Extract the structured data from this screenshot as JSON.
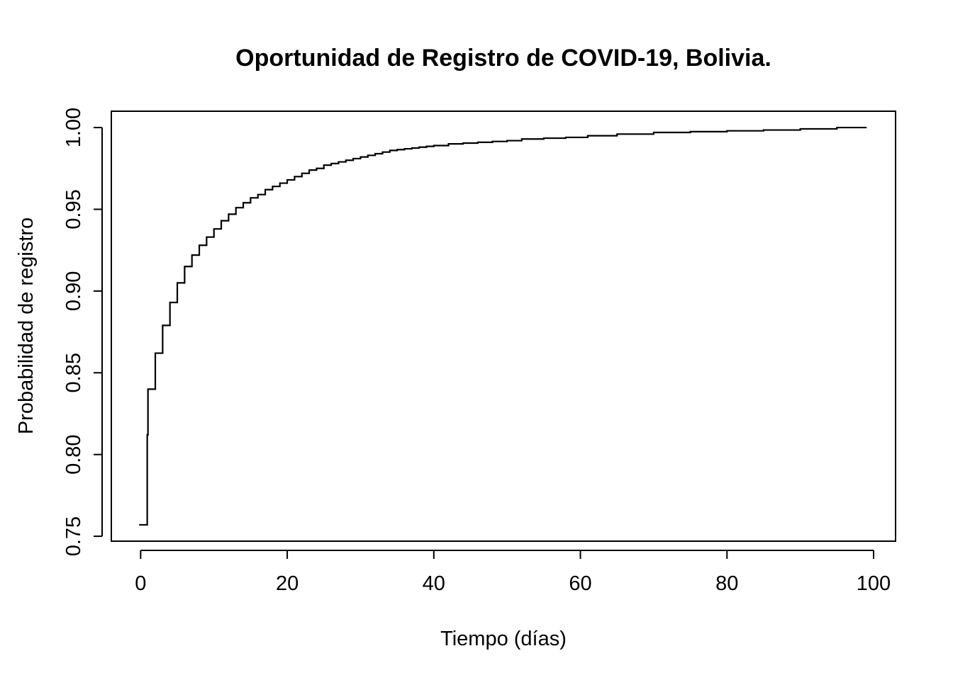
{
  "chart_data": {
    "type": "line",
    "step": true,
    "title": "Oportunidad de Registro de COVID-19, Bolivia.",
    "xlabel": "Tiempo (días)",
    "ylabel": "Probabilidad de registro",
    "xlim": [
      -4,
      103
    ],
    "ylim": [
      0.747,
      1.01
    ],
    "x_ticks": [
      0,
      20,
      40,
      60,
      80,
      100
    ],
    "x_tick_labels": [
      "0",
      "20",
      "40",
      "60",
      "80",
      "100"
    ],
    "y_ticks": [
      0.75,
      0.8,
      0.85,
      0.9,
      0.95,
      1.0
    ],
    "y_tick_labels": [
      "0.75",
      "0.80",
      "0.85",
      "0.90",
      "0.95",
      "1.00"
    ],
    "grid": false,
    "line_color": "#000000",
    "series": [
      {
        "x": [
          0,
          1,
          2,
          3,
          4,
          5,
          6,
          7,
          8,
          9,
          10,
          11,
          12,
          13,
          14,
          15,
          16,
          17,
          18,
          19,
          20,
          21,
          22,
          23,
          24,
          25,
          26,
          27,
          28,
          29,
          30,
          31,
          32,
          33,
          34,
          35,
          36,
          37,
          38,
          39,
          40,
          42,
          44,
          46,
          48,
          50,
          52,
          55,
          58,
          61,
          65,
          70,
          75,
          80,
          85,
          90,
          95,
          99
        ],
        "y": [
          0.757,
          0.812,
          0.84,
          0.862,
          0.879,
          0.893,
          0.905,
          0.915,
          0.922,
          0.928,
          0.933,
          0.938,
          0.943,
          0.947,
          0.951,
          0.954,
          0.957,
          0.959,
          0.962,
          0.964,
          0.966,
          0.968,
          0.97,
          0.972,
          0.974,
          0.975,
          0.977,
          0.978,
          0.979,
          0.98,
          0.981,
          0.982,
          0.983,
          0.984,
          0.985,
          0.986,
          0.9865,
          0.987,
          0.9875,
          0.988,
          0.9885,
          0.989,
          0.99,
          0.9905,
          0.991,
          0.9915,
          0.992,
          0.993,
          0.9935,
          0.994,
          0.995,
          0.996,
          0.997,
          0.9975,
          0.998,
          0.9985,
          0.9992,
          1.0
        ]
      }
    ]
  }
}
